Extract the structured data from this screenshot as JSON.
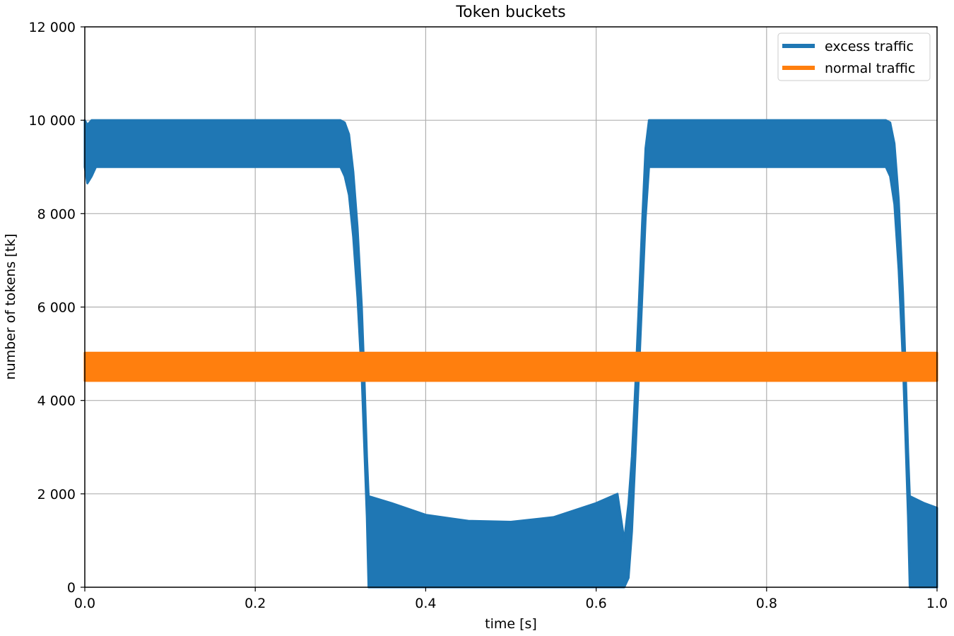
{
  "chart_data": {
    "type": "area",
    "title": "Token buckets",
    "xlabel": "time [s]",
    "ylabel": "number of tokens [tk]",
    "xlim": [
      0.0,
      1.0
    ],
    "ylim": [
      0,
      12000
    ],
    "xticks": [
      0.0,
      0.2,
      0.4,
      0.6,
      0.8,
      1.0
    ],
    "xtick_labels": [
      "0.0",
      "0.2",
      "0.4",
      "0.6",
      "0.8",
      "1.0"
    ],
    "yticks": [
      0,
      2000,
      4000,
      6000,
      8000,
      10000,
      12000
    ],
    "ytick_labels": [
      "0",
      "2 000",
      "4 000",
      "6 000",
      "8 000",
      "10 000",
      "12 000"
    ],
    "grid": true,
    "legend_position": "top-right",
    "series": [
      {
        "name": "excess traffic",
        "color": "#1f77b4",
        "band": [
          {
            "x": 0.0,
            "low": 9000,
            "high": 10000
          },
          {
            "x": 0.003,
            "low": 8650,
            "high": 9900
          },
          {
            "x": 0.008,
            "low": 8800,
            "high": 10000
          },
          {
            "x": 0.013,
            "low": 9000,
            "high": 10000
          },
          {
            "x": 0.3,
            "low": 9000,
            "high": 10000
          },
          {
            "x": 0.305,
            "low": 8800,
            "high": 9950
          },
          {
            "x": 0.31,
            "low": 8400,
            "high": 9700
          },
          {
            "x": 0.315,
            "low": 7500,
            "high": 8900
          },
          {
            "x": 0.32,
            "low": 6200,
            "high": 7700
          },
          {
            "x": 0.325,
            "low": 4500,
            "high": 6000
          },
          {
            "x": 0.328,
            "low": 3000,
            "high": 4500
          },
          {
            "x": 0.331,
            "low": 1500,
            "high": 2800
          },
          {
            "x": 0.333,
            "low": 0,
            "high": 1950
          },
          {
            "x": 0.36,
            "low": 0,
            "high": 1800
          },
          {
            "x": 0.4,
            "low": 0,
            "high": 1550
          },
          {
            "x": 0.45,
            "low": 0,
            "high": 1420
          },
          {
            "x": 0.5,
            "low": 0,
            "high": 1400
          },
          {
            "x": 0.55,
            "low": 0,
            "high": 1500
          },
          {
            "x": 0.6,
            "low": 0,
            "high": 1800
          },
          {
            "x": 0.625,
            "low": 0,
            "high": 2000
          },
          {
            "x": 0.633,
            "low": 0,
            "high": 1000
          },
          {
            "x": 0.638,
            "low": 200,
            "high": 1800
          },
          {
            "x": 0.642,
            "low": 1200,
            "high": 2800
          },
          {
            "x": 0.646,
            "low": 2800,
            "high": 4300
          },
          {
            "x": 0.65,
            "low": 4500,
            "high": 6000
          },
          {
            "x": 0.654,
            "low": 6200,
            "high": 7800
          },
          {
            "x": 0.658,
            "low": 7900,
            "high": 9400
          },
          {
            "x": 0.662,
            "low": 9000,
            "high": 10000
          },
          {
            "x": 0.94,
            "low": 9000,
            "high": 10000
          },
          {
            "x": 0.945,
            "low": 8800,
            "high": 9950
          },
          {
            "x": 0.95,
            "low": 8200,
            "high": 9500
          },
          {
            "x": 0.955,
            "low": 6800,
            "high": 8300
          },
          {
            "x": 0.96,
            "low": 4800,
            "high": 6300
          },
          {
            "x": 0.963,
            "low": 3200,
            "high": 4700
          },
          {
            "x": 0.966,
            "low": 1500,
            "high": 2900
          },
          {
            "x": 0.968,
            "low": 0,
            "high": 1950
          },
          {
            "x": 0.985,
            "low": 0,
            "high": 1800
          },
          {
            "x": 1.0,
            "low": 0,
            "high": 1700
          }
        ]
      },
      {
        "name": "normal traffic",
        "color": "#ff7f0e",
        "band": [
          {
            "x": 0.0,
            "low": 4420,
            "high": 5020
          },
          {
            "x": 1.0,
            "low": 4420,
            "high": 5020
          }
        ]
      }
    ]
  }
}
